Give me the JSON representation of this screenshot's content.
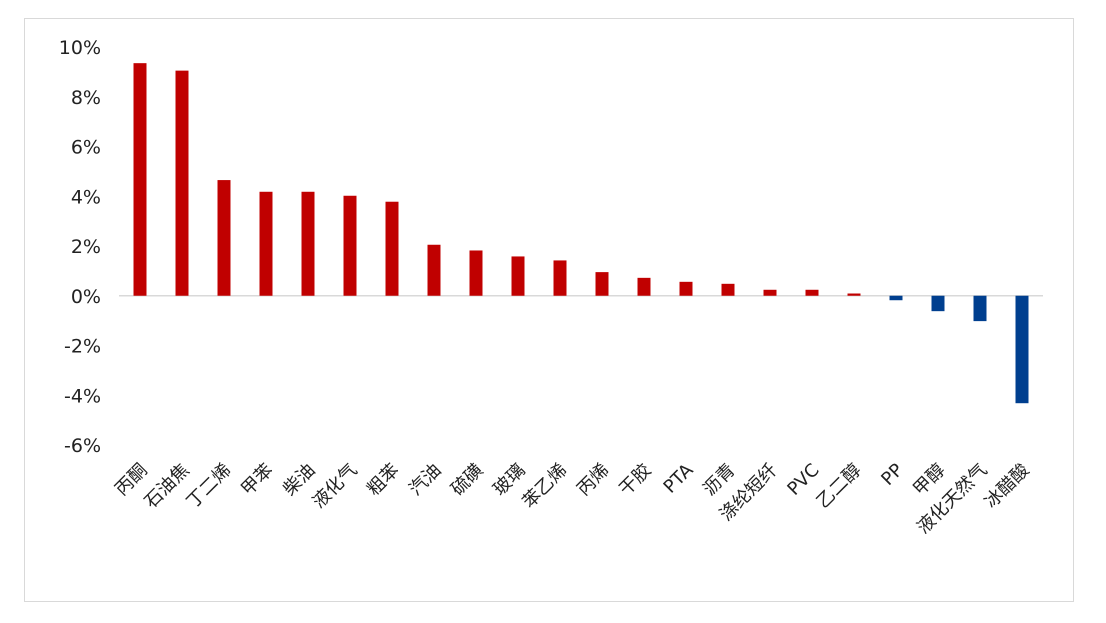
{
  "chart_data": {
    "type": "bar",
    "categories": [
      "丙酮",
      "石油焦",
      "丁二烯",
      "甲苯",
      "柴油",
      "液化气",
      "粗苯",
      "汽油",
      "硫磺",
      "玻璃",
      "苯乙烯",
      "丙烯",
      "干胶",
      "PTA",
      "沥青",
      "涤纶短纤",
      "PVC",
      "乙二醇",
      "PP",
      "甲醇",
      "液化天然气",
      "冰醋酸"
    ],
    "values": [
      9.35,
      9.05,
      4.65,
      4.18,
      4.18,
      4.02,
      3.78,
      2.05,
      1.82,
      1.58,
      1.42,
      0.95,
      0.72,
      0.56,
      0.48,
      0.24,
      0.24,
      0.09,
      -0.18,
      -0.62,
      -1.02,
      -4.32
    ],
    "ylim": [
      -6,
      10
    ],
    "yticks": [
      -6,
      -4,
      -2,
      0,
      2,
      4,
      6,
      8,
      10
    ],
    "ytick_labels": [
      "-6%",
      "-4%",
      "-2%",
      "0%",
      "2%",
      "4%",
      "6%",
      "8%",
      "10%"
    ],
    "title": "",
    "xlabel": "",
    "ylabel": "",
    "grid": false,
    "legend": "none",
    "colors": {
      "positive": "#c00000",
      "negative": "#003f8f",
      "axis": "#d9d9d9",
      "text": "#222222"
    }
  }
}
